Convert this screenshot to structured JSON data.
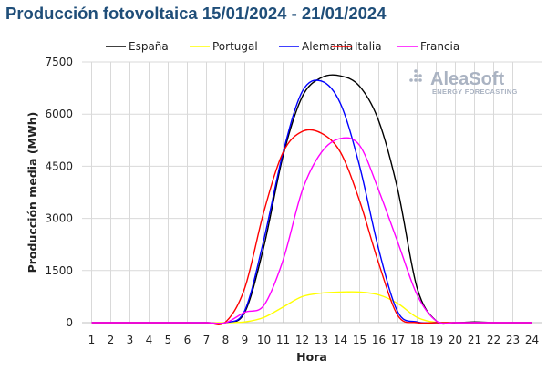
{
  "chart_data": {
    "type": "line",
    "title": "Producción fotovoltaica 15/01/2024 - 21/01/2024",
    "xlabel": "Hora",
    "ylabel": "Producción media (MWh)",
    "x": [
      1,
      2,
      3,
      4,
      5,
      6,
      7,
      8,
      9,
      10,
      11,
      12,
      13,
      14,
      15,
      16,
      17,
      18,
      19,
      20,
      21,
      22,
      23,
      24
    ],
    "xlim": [
      1,
      24
    ],
    "ylim": [
      0,
      7500
    ],
    "yticks": [
      0,
      1500,
      3000,
      4500,
      6000,
      7500
    ],
    "grid": true,
    "legend_position": "top",
    "series": [
      {
        "name": "España",
        "color": "#000000",
        "values": [
          0,
          0,
          0,
          0,
          0,
          0,
          0,
          0,
          300,
          2200,
          4800,
          6500,
          7050,
          7100,
          6800,
          5800,
          3800,
          1000,
          50,
          0,
          20,
          0,
          0,
          0
        ]
      },
      {
        "name": "Portugal",
        "color": "#ffff00",
        "values": [
          0,
          0,
          0,
          0,
          0,
          0,
          0,
          0,
          20,
          150,
          450,
          750,
          850,
          880,
          880,
          800,
          550,
          150,
          10,
          0,
          0,
          0,
          0,
          0
        ]
      },
      {
        "name": "Alemania",
        "color": "#0000ff",
        "values": [
          0,
          0,
          0,
          0,
          0,
          0,
          0,
          0,
          350,
          2400,
          4900,
          6650,
          6950,
          6300,
          4500,
          2100,
          300,
          20,
          0,
          0,
          0,
          0,
          0,
          0
        ]
      },
      {
        "name": "Italia",
        "color": "#ff0000",
        "values": [
          0,
          0,
          0,
          0,
          0,
          0,
          0,
          20,
          1000,
          3200,
          4900,
          5500,
          5450,
          4900,
          3500,
          1700,
          200,
          0,
          0,
          0,
          0,
          0,
          0,
          0
        ]
      },
      {
        "name": "Francia",
        "color": "#ff00ff",
        "values": [
          0,
          0,
          0,
          0,
          0,
          0,
          0,
          0,
          300,
          500,
          1800,
          3800,
          4900,
          5300,
          5100,
          3800,
          2300,
          800,
          50,
          0,
          0,
          0,
          0,
          0
        ]
      }
    ]
  },
  "watermark": {
    "brand": "AleaSoft",
    "tagline": "ENERGY FORECASTING",
    "color": "#aab3c2"
  }
}
